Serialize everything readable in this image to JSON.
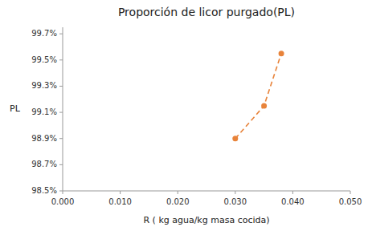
{
  "chart_data": {
    "type": "line",
    "title": "Proporción de licor purgado(PL)",
    "xlabel": "R ( kg agua/kg masa cocida)",
    "ylabel": "PL",
    "x": [
      0.03,
      0.035,
      0.038
    ],
    "values": [
      98.9,
      99.15,
      99.55
    ],
    "color": "#E8833A",
    "marker": "circle",
    "line_style": "dashed",
    "xlim": [
      0.0,
      0.05
    ],
    "ylim": [
      98.5,
      99.75
    ],
    "xticks": [
      {
        "value": 0.0,
        "label": "0.000"
      },
      {
        "value": 0.01,
        "label": "0.010"
      },
      {
        "value": 0.02,
        "label": "0.020"
      },
      {
        "value": 0.03,
        "label": "0.030"
      },
      {
        "value": 0.04,
        "label": "0.040"
      },
      {
        "value": 0.05,
        "label": "0.050"
      }
    ],
    "yticks": [
      {
        "value": 98.5,
        "label": "98.5%"
      },
      {
        "value": 98.7,
        "label": "98.7%"
      },
      {
        "value": 98.9,
        "label": "98.9%"
      },
      {
        "value": 99.1,
        "label": "99.1%"
      },
      {
        "value": 99.3,
        "label": "99.3%"
      },
      {
        "value": 99.5,
        "label": "99.5%"
      },
      {
        "value": 99.7,
        "label": "99.7%"
      }
    ],
    "grid": false
  }
}
